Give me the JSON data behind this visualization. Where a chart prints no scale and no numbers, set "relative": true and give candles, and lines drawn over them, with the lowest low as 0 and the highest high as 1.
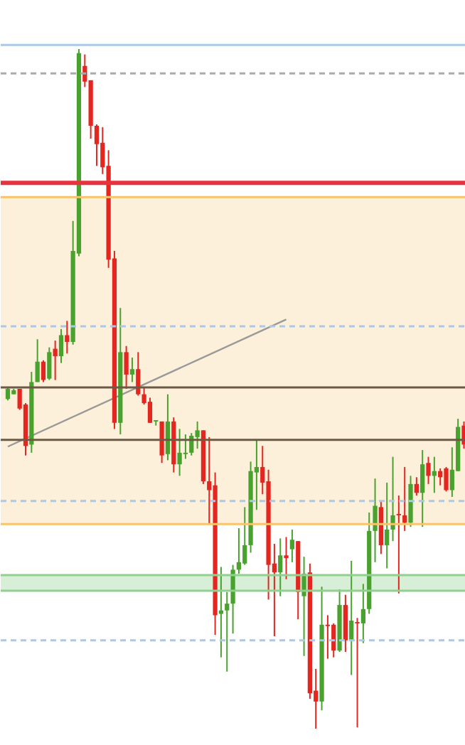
{
  "chart_data": {
    "type": "candlestick",
    "relative": true,
    "categories": [
      null,
      null,
      null,
      null,
      null,
      null,
      null,
      null,
      null,
      null,
      null,
      null,
      null,
      null,
      null,
      null,
      null,
      null,
      null,
      null,
      null,
      null,
      null,
      null,
      null,
      null,
      null,
      null,
      null,
      null,
      null,
      null,
      null,
      null,
      null,
      null,
      null,
      null,
      null,
      null,
      null,
      null,
      null,
      null,
      null,
      null,
      null,
      null,
      null,
      null,
      null,
      null,
      null,
      null,
      null,
      null,
      null,
      null,
      null,
      null,
      null,
      null,
      null,
      null,
      null,
      null,
      null,
      null,
      null,
      null,
      null,
      null,
      null,
      null,
      null,
      null,
      null,
      null
    ],
    "ohlc": [
      [
        0.485,
        0.502,
        0.483,
        0.5
      ],
      [
        0.492,
        0.5,
        0.492,
        0.498
      ],
      [
        0.5,
        0.5,
        0.469,
        0.471
      ],
      [
        0.477,
        0.479,
        0.402,
        0.416
      ],
      [
        0.418,
        0.525,
        0.406,
        0.51
      ],
      [
        0.51,
        0.573,
        0.51,
        0.54
      ],
      [
        0.54,
        0.542,
        0.51,
        0.513
      ],
      [
        0.515,
        0.561,
        0.513,
        0.554
      ],
      [
        0.559,
        0.571,
        0.513,
        0.548
      ],
      [
        0.548,
        0.588,
        0.538,
        0.579
      ],
      [
        0.579,
        0.6,
        0.552,
        0.569
      ],
      [
        0.569,
        0.747,
        0.565,
        0.703
      ],
      [
        0.699,
        1.0,
        0.695,
        0.994
      ],
      [
        0.975,
        0.992,
        0.944,
        0.952
      ],
      [
        0.954,
        0.954,
        0.868,
        0.887
      ],
      [
        0.887,
        0.889,
        0.828,
        0.86
      ],
      [
        0.862,
        0.885,
        0.816,
        0.826
      ],
      [
        0.828,
        0.851,
        0.678,
        0.69
      ],
      [
        0.692,
        0.703,
        0.441,
        0.45
      ],
      [
        0.45,
        0.619,
        0.433,
        0.554
      ],
      [
        0.554,
        0.563,
        0.5,
        0.521
      ],
      [
        0.521,
        0.546,
        0.51,
        0.529
      ],
      [
        0.529,
        0.554,
        0.49,
        0.492
      ],
      [
        0.492,
        0.502,
        0.477,
        0.479
      ],
      [
        0.481,
        0.487,
        0.45,
        0.45
      ],
      [
        0.452,
        0.454,
        0.446,
        0.454
      ],
      [
        0.452,
        0.452,
        0.391,
        0.402
      ],
      [
        0.404,
        0.492,
        0.395,
        0.452
      ],
      [
        0.452,
        0.458,
        0.377,
        0.389
      ],
      [
        0.389,
        0.441,
        0.372,
        0.406
      ],
      [
        0.404,
        0.433,
        0.397,
        0.406
      ],
      [
        0.406,
        0.435,
        0.402,
        0.431
      ],
      [
        0.429,
        0.452,
        0.412,
        0.439
      ],
      [
        0.439,
        0.439,
        0.36,
        0.364
      ],
      [
        0.364,
        0.429,
        0.301,
        0.351
      ],
      [
        0.358,
        0.377,
        0.138,
        0.167
      ],
      [
        0.169,
        0.238,
        0.105,
        0.174
      ],
      [
        0.174,
        0.201,
        0.084,
        0.184
      ],
      [
        0.184,
        0.241,
        0.14,
        0.234
      ],
      [
        0.234,
        0.295,
        0.228,
        0.245
      ],
      [
        0.243,
        0.326,
        0.241,
        0.27
      ],
      [
        0.27,
        0.393,
        0.259,
        0.379
      ],
      [
        0.377,
        0.425,
        0.322,
        0.385
      ],
      [
        0.385,
        0.416,
        0.345,
        0.362
      ],
      [
        0.364,
        0.381,
        0.19,
        0.241
      ],
      [
        0.243,
        0.272,
        0.136,
        0.23
      ],
      [
        0.23,
        0.28,
        0.195,
        0.255
      ],
      [
        0.255,
        0.282,
        0.22,
        0.251
      ],
      [
        0.264,
        0.293,
        0.245,
        0.278
      ],
      [
        0.276,
        0.276,
        0.161,
        0.201
      ],
      [
        0.195,
        0.253,
        0.107,
        0.228
      ],
      [
        0.23,
        0.243,
        0.044,
        0.052
      ],
      [
        0.056,
        0.088,
        0.0,
        0.04
      ],
      [
        0.04,
        0.209,
        0.027,
        0.153
      ],
      [
        0.153,
        0.167,
        0.103,
        0.151
      ],
      [
        0.153,
        0.155,
        0.105,
        0.115
      ],
      [
        0.115,
        0.205,
        0.113,
        0.182
      ],
      [
        0.182,
        0.197,
        0.113,
        0.13
      ],
      [
        0.13,
        0.247,
        0.079,
        0.159
      ],
      [
        0.157,
        0.163,
        0.002,
        0.155
      ],
      [
        0.155,
        0.213,
        0.126,
        0.176
      ],
      [
        0.176,
        0.318,
        0.169,
        0.291
      ],
      [
        0.291,
        0.368,
        0.245,
        0.328
      ],
      [
        0.326,
        0.335,
        0.257,
        0.27
      ],
      [
        0.27,
        0.362,
        0.236,
        0.293
      ],
      [
        0.293,
        0.4,
        0.276,
        0.314
      ],
      [
        0.316,
        0.343,
        0.199,
        0.314
      ],
      [
        0.314,
        0.385,
        0.291,
        0.303
      ],
      [
        0.303,
        0.372,
        0.297,
        0.36
      ],
      [
        0.36,
        0.37,
        0.343,
        0.347
      ],
      [
        0.347,
        0.41,
        0.297,
        0.389
      ],
      [
        0.391,
        0.4,
        0.36,
        0.372
      ],
      [
        0.372,
        0.4,
        0.347,
        0.379
      ],
      [
        0.379,
        0.383,
        0.358,
        0.37
      ],
      [
        0.383,
        0.385,
        0.349,
        0.351
      ],
      [
        0.351,
        0.414,
        0.341,
        0.381
      ],
      [
        0.379,
        0.456,
        0.379,
        0.444
      ],
      [
        0.446,
        0.452,
        0.412,
        0.418
      ]
    ],
    "series": [
      {
        "type": "line",
        "values": [
          0.415,
          null,
          null,
          null,
          null,
          null,
          null,
          null,
          null,
          null,
          null,
          null,
          null,
          null,
          null,
          null,
          null,
          null,
          null,
          null,
          null,
          null,
          null,
          null,
          null,
          null,
          null,
          null,
          null,
          null,
          null,
          null,
          null,
          null,
          null,
          null,
          null,
          null,
          null,
          null,
          null,
          null,
          null,
          null,
          null,
          null,
          null,
          0.602,
          null,
          null,
          null,
          null,
          null,
          null,
          null,
          null,
          null,
          null,
          null,
          null,
          null,
          null,
          null,
          null,
          null,
          null,
          null,
          null,
          null,
          null,
          null,
          null,
          null,
          null,
          null,
          null,
          null,
          null
        ],
        "color": "#999999"
      }
    ],
    "bands": [
      {
        "axis": "y",
        "from": 0.301,
        "to": 0.782,
        "color": "#fdf0da"
      },
      {
        "axis": "y",
        "from": 0.203,
        "to": 0.226,
        "color": "#d6efd6"
      }
    ],
    "ref_lines": [
      {
        "axis": "y",
        "value": 1.006,
        "color": "#a9c8ea",
        "line_style": "solid"
      },
      {
        "axis": "y",
        "value": 0.964,
        "color": "#aaaaaa",
        "line_style": "dashed"
      },
      {
        "axis": "y",
        "value": 0.803,
        "color": "#e8323c",
        "line_style": "solid"
      },
      {
        "axis": "y",
        "value": 0.782,
        "color": "#f7c46a",
        "line_style": "solid"
      },
      {
        "axis": "y",
        "value": 0.592,
        "color": "#a9c8ea",
        "line_style": "dashed"
      },
      {
        "axis": "y",
        "value": 0.502,
        "color": "#6b5a45",
        "line_style": "solid"
      },
      {
        "axis": "y",
        "value": 0.425,
        "color": "#6b5a45",
        "line_style": "solid"
      },
      {
        "axis": "y",
        "value": 0.335,
        "color": "#a9c8ea",
        "line_style": "dashed"
      },
      {
        "axis": "y",
        "value": 0.301,
        "color": "#f7c46a",
        "line_style": "solid"
      },
      {
        "axis": "y",
        "value": 0.226,
        "color": "#8fd08f",
        "line_style": "solid"
      },
      {
        "axis": "y",
        "value": 0.203,
        "color": "#8fd08f",
        "line_style": "solid"
      },
      {
        "axis": "y",
        "value": 0.13,
        "color": "#a9c8ea",
        "line_style": "dashed"
      }
    ]
  }
}
